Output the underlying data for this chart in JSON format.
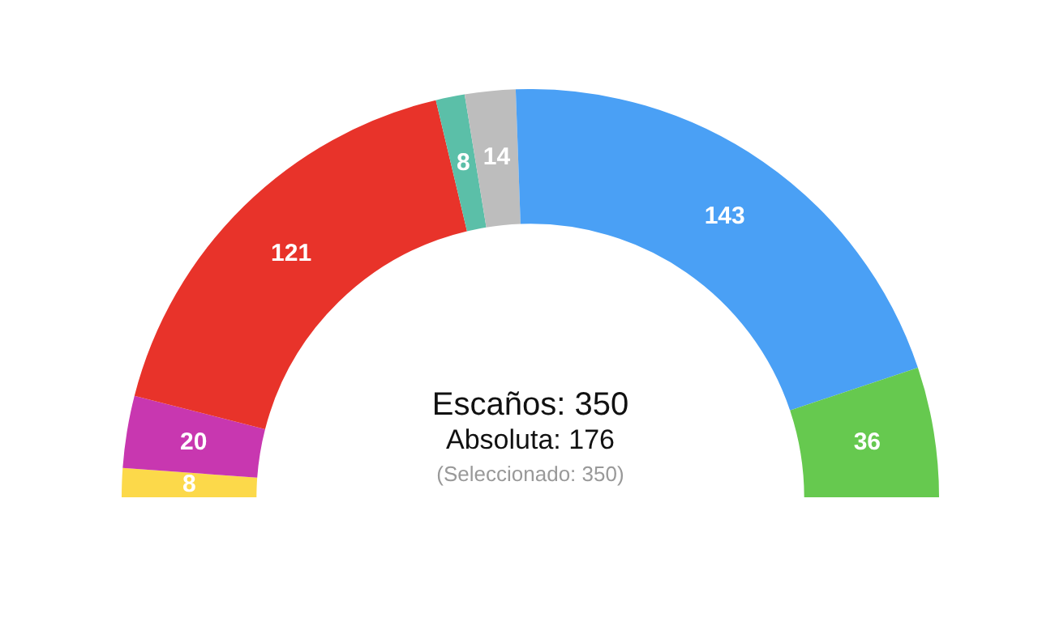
{
  "chart_data": {
    "type": "donut",
    "categories": [
      null,
      null,
      null,
      null,
      null,
      null,
      null
    ],
    "values": [
      8,
      20,
      121,
      8,
      14,
      143,
      36
    ],
    "colors": [
      "#fcd94a",
      "#c837b0",
      "#e8332a",
      "#5bbfa8",
      "#bdbdbd",
      "#4aa0f5",
      "#66c94f"
    ],
    "data_labels": true,
    "legend": false,
    "annotations": [
      "Escaños: 350",
      "Absoluta: 176",
      "(Seleccionado: 350)"
    ]
  }
}
